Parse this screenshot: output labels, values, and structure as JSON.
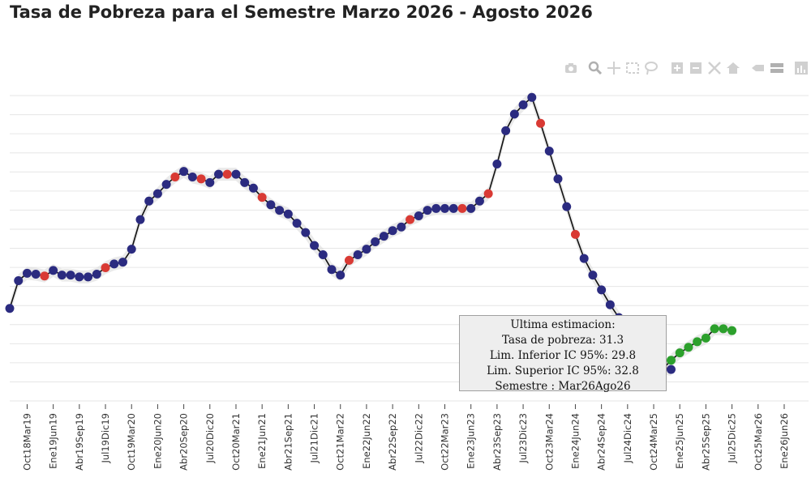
{
  "title": "Tasa de Pobreza para el Semestre Marzo 2026 - Agosto 2026",
  "toolbar": {
    "buttons": [
      "camera-icon",
      "zoom-icon",
      "pan-icon",
      "box-select-icon",
      "lasso-icon",
      "zoom-in-icon",
      "zoom-out-icon",
      "autoscale-icon",
      "reset-axes-icon",
      "hover-closest-icon",
      "hover-compare-icon",
      "plotly-logo-icon"
    ]
  },
  "tooltip": {
    "heading": "Ultima estimacion:",
    "rate": "Tasa de pobreza:  31.3",
    "lower": "Lim. Inferior IC 95%:  29.8",
    "upper": "Lim. Superior IC 95%:  32.8",
    "semester": "Semestre : Mar26Ago26"
  },
  "colors": {
    "line": "#111111",
    "point": "#2b2b80",
    "highlight": "#d93a34",
    "forecast": "#2ca02c",
    "band": "#d9d9d9",
    "grid": "#e6e6e6"
  },
  "chart_data": {
    "type": "line",
    "title": "Tasa de Pobreza para el Semestre Marzo 2026 - Agosto 2026",
    "xlabel": "",
    "ylabel": "",
    "grid": true,
    "legend": "none",
    "ylim": [
      30,
      46.5
    ],
    "x_tick_labels": [
      "Oct18Mar19",
      "Ene19Jun19",
      "Abr19Sep19",
      "Jul19Dic19",
      "Oct19Mar20",
      "Ene20Jun20",
      "Abr20Sep20",
      "Jul20Dic20",
      "Oct20Mar21",
      "Ene21Jun21",
      "Abr21Sep21",
      "Jul21Dic21",
      "Oct21Mar22",
      "Ene22Jun22",
      "Abr22Sep22",
      "Jul22Dic22",
      "Oct22Mar23",
      "Ene23Jun23",
      "Abr23Sep23",
      "Jul23Dic23",
      "Oct23Mar24",
      "Ene24Jun24",
      "Abr24Sep24",
      "Jul24Dic24",
      "Oct24Mar25",
      "Ene25Jun25",
      "Abr25Sep25",
      "Jul25Dic25",
      "Oct25Mar26",
      "Ene26Jun26"
    ],
    "series": [
      {
        "values": [
          35.0,
          36.5,
          36.9,
          36.85,
          36.75,
          37.05,
          36.8,
          36.8,
          36.7,
          36.7,
          36.85,
          37.2,
          37.4,
          37.5,
          38.2,
          39.8,
          40.8,
          41.2,
          41.7,
          42.1,
          42.4,
          42.1,
          42.0,
          41.8,
          42.25,
          42.25,
          42.25,
          41.8,
          41.5,
          41.0,
          40.6,
          40.3,
          40.1,
          39.6,
          39.1,
          38.4,
          37.9,
          37.1,
          36.8,
          37.6,
          37.9,
          38.2,
          38.6,
          38.9,
          39.2,
          39.4,
          39.8,
          40.0,
          40.3,
          40.4,
          40.4,
          40.4,
          40.4,
          40.4,
          40.8,
          41.2,
          42.8,
          44.6,
          45.5,
          46.0,
          46.4,
          45.0,
          43.5,
          42.0,
          40.5,
          39.0,
          37.7,
          36.8,
          36.0,
          35.2,
          34.5,
          34.0,
          33.4,
          32.9,
          32.3,
          31.8,
          31.7
        ],
        "highlighted_indices": [
          4,
          11,
          19,
          22,
          25,
          29,
          39,
          46,
          52,
          55,
          61,
          65,
          71,
          75
        ]
      },
      {
        "values": [
          31.7,
          32.2,
          32.6,
          32.9,
          33.2,
          33.4,
          33.9,
          33.9,
          33.8
        ],
        "start_index": 75
      }
    ]
  }
}
